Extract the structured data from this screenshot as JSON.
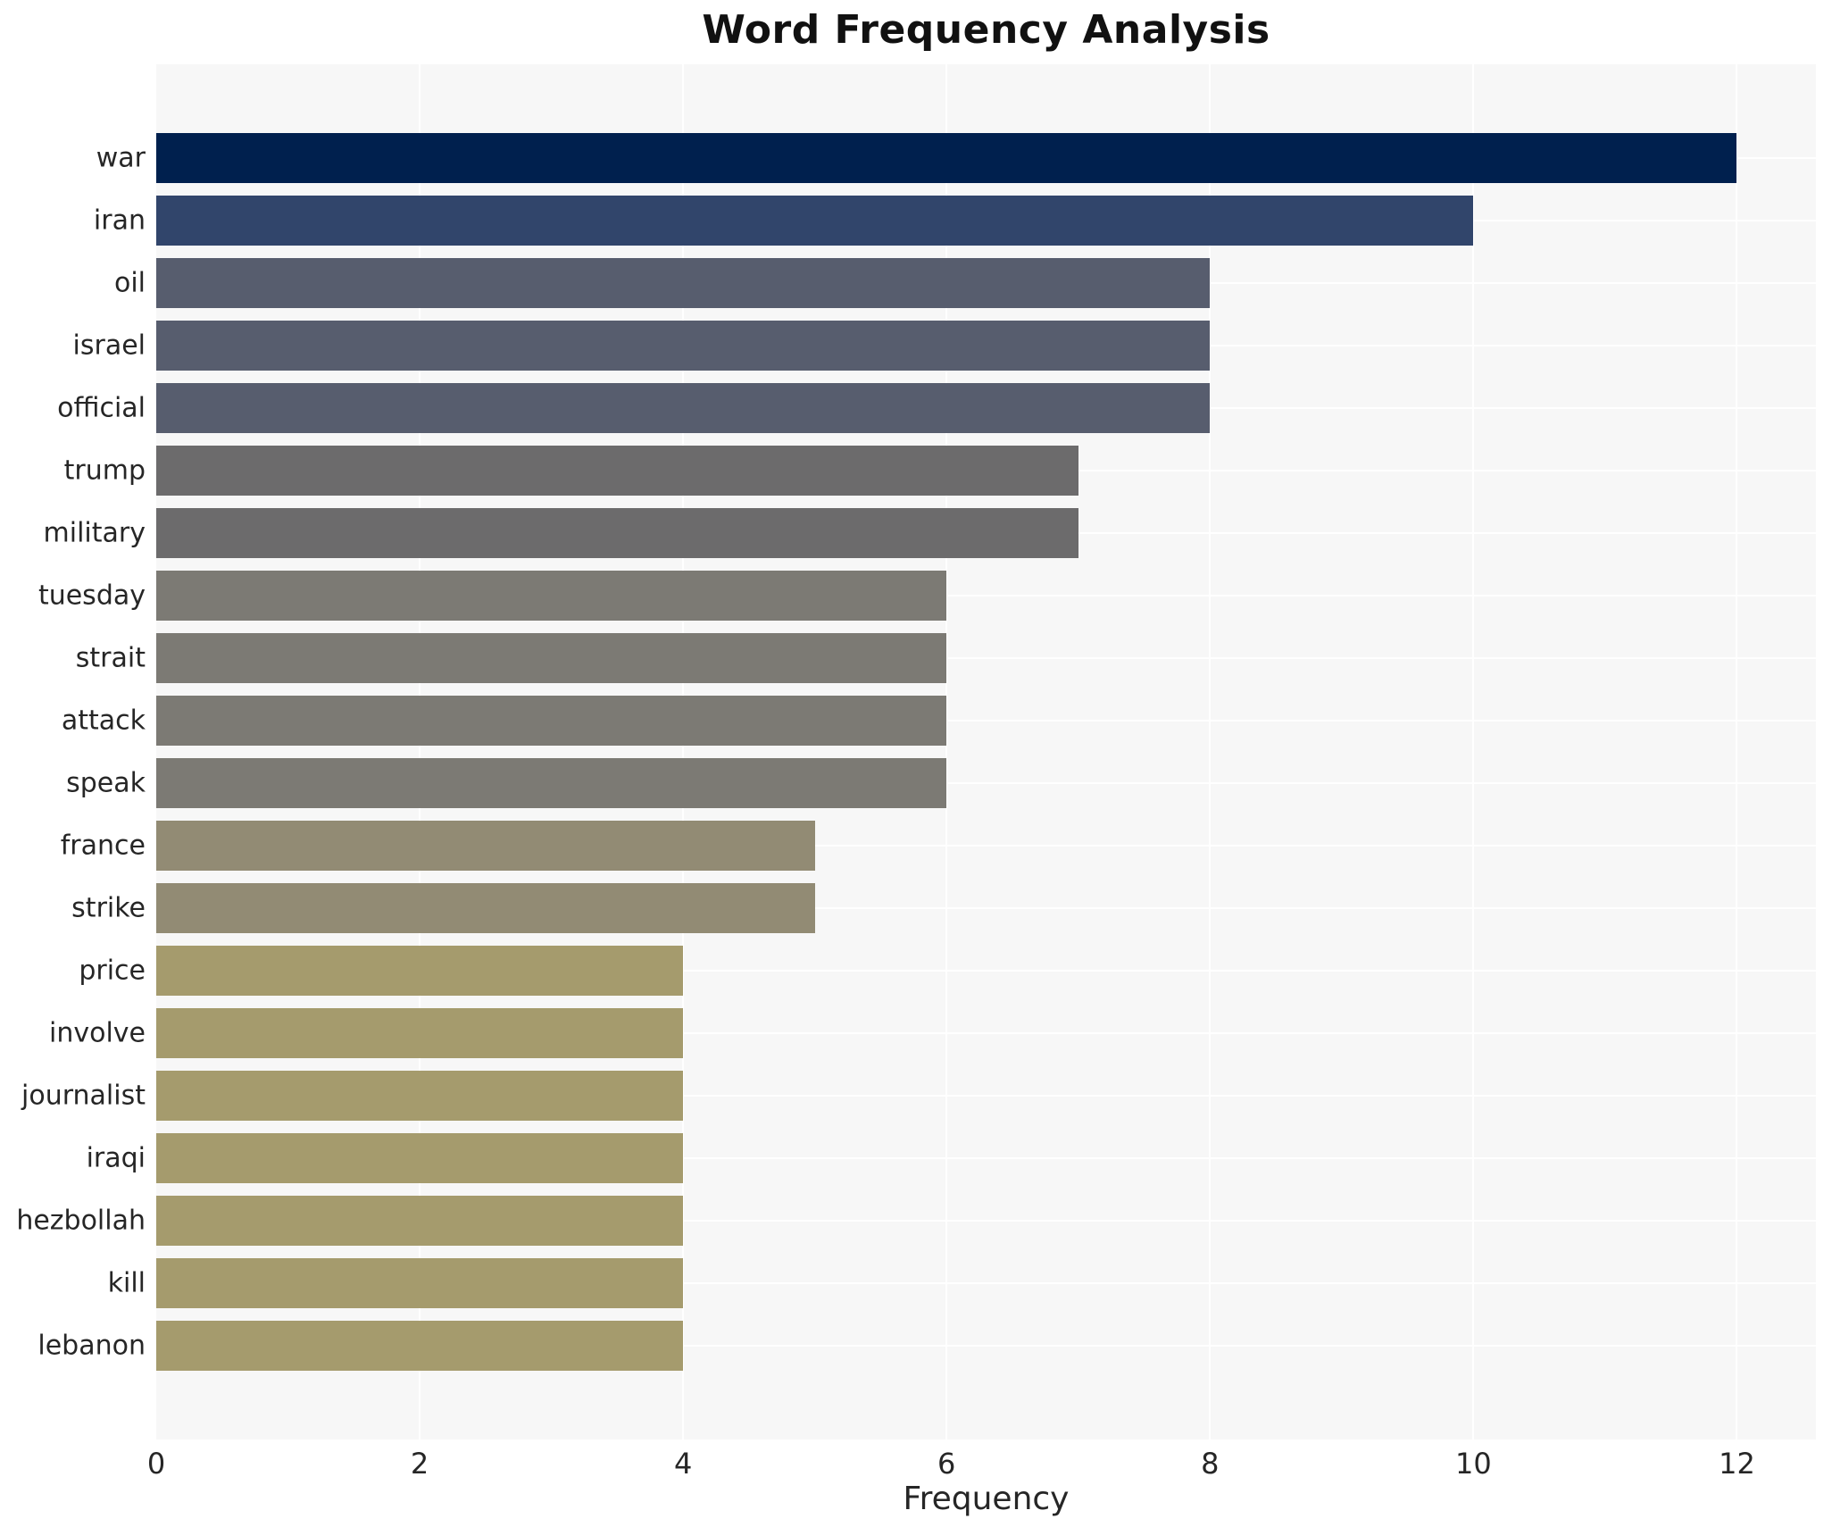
{
  "title": "Word Frequency Analysis",
  "chart_data": {
    "type": "bar",
    "orientation": "horizontal",
    "title": "Word Frequency Analysis",
    "xlabel": "Frequency",
    "ylabel": "",
    "categories": [
      "war",
      "iran",
      "oil",
      "israel",
      "official",
      "trump",
      "military",
      "tuesday",
      "strait",
      "attack",
      "speak",
      "france",
      "strike",
      "price",
      "involve",
      "journalist",
      "iraqi",
      "hezbollah",
      "kill",
      "lebanon"
    ],
    "values": [
      12,
      10,
      8,
      8,
      8,
      7,
      7,
      6,
      6,
      6,
      6,
      5,
      5,
      4,
      4,
      4,
      4,
      4,
      4,
      4
    ],
    "bar_colors": [
      "#00204e",
      "#31456b",
      "#575d6e",
      "#575d6e",
      "#575d6e",
      "#6c6b6c",
      "#6c6b6c",
      "#7c7a74",
      "#7c7a74",
      "#7c7a74",
      "#7c7a74",
      "#928b74",
      "#928b74",
      "#a59b6d",
      "#a59b6d",
      "#a59b6d",
      "#a59b6d",
      "#a59b6d",
      "#a59b6d",
      "#a59b6d"
    ],
    "xticks": [
      0,
      2,
      4,
      6,
      8,
      10,
      12
    ],
    "xlim": [
      0,
      12.6
    ],
    "grid": true,
    "legend_position": "none",
    "panel_bg": "#f7f7f7",
    "grid_color": "#ffffff",
    "text_color": "#262626"
  }
}
